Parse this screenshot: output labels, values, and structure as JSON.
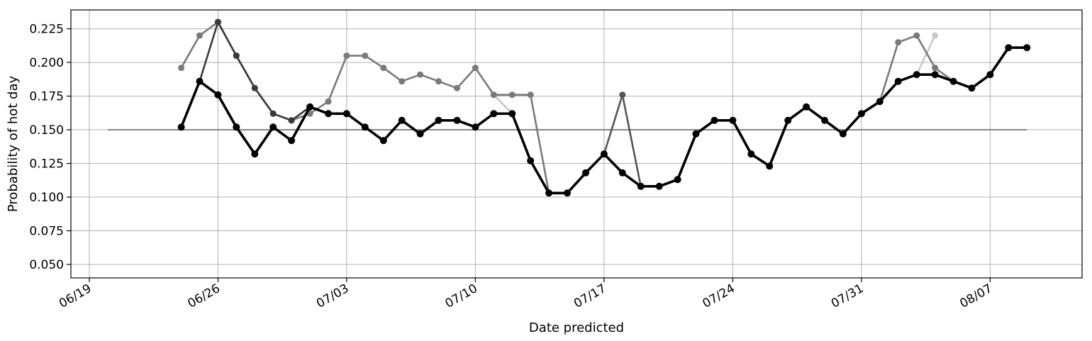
{
  "chart_data": {
    "type": "line",
    "title": "",
    "xlabel": "Date predicted",
    "ylabel": "Probability of hot day",
    "x_axis": {
      "type": "date",
      "range": [
        "2019-06-18",
        "2019-08-12"
      ],
      "ticks": [
        "2019-06-19",
        "2019-06-26",
        "2019-07-03",
        "2019-07-10",
        "2019-07-17",
        "2019-07-24",
        "2019-07-31",
        "2019-08-07"
      ],
      "tick_labels": [
        "06/19",
        "06/26",
        "07/03",
        "07/10",
        "07/17",
        "07/24",
        "07/31",
        "08/07"
      ]
    },
    "y_axis": {
      "range": [
        0.04,
        0.239
      ],
      "ticks": [
        0.05,
        0.075,
        0.1,
        0.125,
        0.15,
        0.175,
        0.2,
        0.225
      ],
      "tick_labels": [
        "0.050",
        "0.075",
        "0.100",
        "0.125",
        "0.150",
        "0.175",
        "0.200",
        "0.225"
      ]
    },
    "grid": true,
    "legend": "none",
    "reference_line": {
      "y": 0.15,
      "x_start": "2019-06-20",
      "x_end": "2019-08-09",
      "color": "#808080"
    },
    "series": [
      {
        "color": "#c8c8c8",
        "x": [
          "2019-07-11",
          "2019-07-12",
          "2019-07-13",
          "2019-07-14"
        ],
        "y": [
          0.176,
          0.162,
          0.127,
          0.103
        ]
      },
      {
        "color": "#c8c8c8",
        "x": [
          "2019-08-02",
          "2019-08-03",
          "2019-08-04"
        ],
        "y": [
          0.186,
          0.191,
          0.22
        ]
      },
      {
        "color": "#7a7a7a",
        "x": [
          "2019-06-24",
          "2019-06-25",
          "2019-06-26",
          "2019-06-27",
          "2019-06-28",
          "2019-06-29",
          "2019-06-30",
          "2019-07-01",
          "2019-07-02",
          "2019-07-03",
          "2019-07-04",
          "2019-07-05",
          "2019-07-06",
          "2019-07-07",
          "2019-07-08",
          "2019-07-09",
          "2019-07-10",
          "2019-07-11",
          "2019-07-12",
          "2019-07-13",
          "2019-07-14"
        ],
        "y": [
          0.196,
          0.22,
          0.23,
          0.205,
          0.181,
          0.162,
          0.157,
          0.162,
          0.171,
          0.205,
          0.205,
          0.196,
          0.186,
          0.191,
          0.186,
          0.181,
          0.196,
          0.176,
          0.176,
          0.176,
          0.103
        ]
      },
      {
        "color": "#7a7a7a",
        "x": [
          "2019-07-31",
          "2019-08-01",
          "2019-08-02",
          "2019-08-03",
          "2019-08-04",
          "2019-08-05"
        ],
        "y": [
          0.162,
          0.171,
          0.215,
          0.22,
          0.196,
          0.186
        ]
      },
      {
        "color": "#555555",
        "x": [
          "2019-07-16",
          "2019-07-17",
          "2019-07-18",
          "2019-07-19"
        ],
        "y": [
          0.118,
          0.132,
          0.176,
          0.108
        ]
      },
      {
        "color": "#3a3a3a",
        "x": [
          "2019-06-25",
          "2019-06-26",
          "2019-06-27",
          "2019-06-28",
          "2019-06-29",
          "2019-06-30",
          "2019-07-01"
        ],
        "y": [
          0.186,
          0.23,
          0.205,
          0.181,
          0.162,
          0.157,
          0.167
        ]
      },
      {
        "color": "#000000",
        "x": [
          "2019-06-24",
          "2019-06-25",
          "2019-06-26",
          "2019-06-27",
          "2019-06-28",
          "2019-06-29",
          "2019-06-30",
          "2019-07-01",
          "2019-07-02",
          "2019-07-03",
          "2019-07-04",
          "2019-07-05",
          "2019-07-06",
          "2019-07-07",
          "2019-07-08",
          "2019-07-09",
          "2019-07-10",
          "2019-07-11",
          "2019-07-12",
          "2019-07-13",
          "2019-07-14",
          "2019-07-15",
          "2019-07-16",
          "2019-07-17",
          "2019-07-18",
          "2019-07-19",
          "2019-07-20",
          "2019-07-21",
          "2019-07-22",
          "2019-07-23",
          "2019-07-24",
          "2019-07-25",
          "2019-07-26",
          "2019-07-27",
          "2019-07-28",
          "2019-07-29",
          "2019-07-30",
          "2019-07-31",
          "2019-08-01",
          "2019-08-02",
          "2019-08-03",
          "2019-08-04",
          "2019-08-05",
          "2019-08-06",
          "2019-08-07",
          "2019-08-08",
          "2019-08-09"
        ],
        "y": [
          0.152,
          0.186,
          0.176,
          0.152,
          0.132,
          0.152,
          0.142,
          0.167,
          0.162,
          0.162,
          0.152,
          0.142,
          0.157,
          0.147,
          0.157,
          0.157,
          0.152,
          0.162,
          0.162,
          0.127,
          0.103,
          0.103,
          0.118,
          0.132,
          0.118,
          0.108,
          0.108,
          0.113,
          0.147,
          0.157,
          0.157,
          0.132,
          0.123,
          0.157,
          0.167,
          0.157,
          0.147,
          0.162,
          0.171,
          0.186,
          0.191,
          0.191,
          0.186,
          0.181,
          0.191,
          0.211,
          0.211
        ]
      }
    ]
  }
}
